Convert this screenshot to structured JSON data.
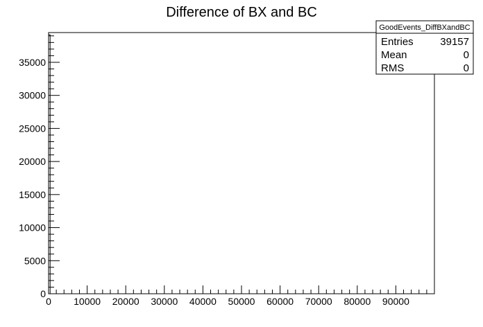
{
  "chart_data": {
    "type": "bar",
    "title": "Difference of BX and BC",
    "xlabel": "",
    "ylabel": "",
    "xlim": [
      0,
      100000
    ],
    "ylim": [
      0,
      39500
    ],
    "x_major_ticks": [
      0,
      10000,
      20000,
      30000,
      40000,
      50000,
      60000,
      70000,
      80000,
      90000
    ],
    "x_minor_step": 2000,
    "y_major_ticks": [
      0,
      5000,
      10000,
      15000,
      20000,
      25000,
      30000,
      35000
    ],
    "y_minor_step": 1000,
    "series": [
      {
        "x": [
          0
        ],
        "values": [
          39157
        ]
      }
    ],
    "grid": false,
    "legend": "none"
  },
  "stats_box": {
    "name": "GoodEvents_DiffBXandBC",
    "rows": [
      {
        "label": "Entries",
        "value": "39157"
      },
      {
        "label": "Mean",
        "value": "0"
      },
      {
        "label": "RMS",
        "value": "0"
      }
    ]
  },
  "colors": {
    "frame": "#000000",
    "background": "#ffffff"
  }
}
